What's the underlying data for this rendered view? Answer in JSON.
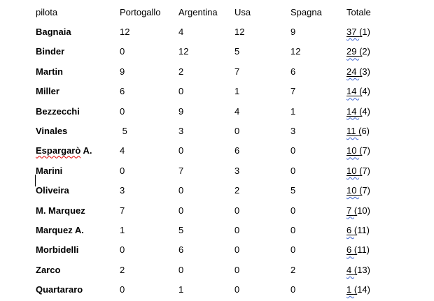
{
  "page": {
    "background": "#ffffff"
  },
  "colors": {
    "text": "#000000",
    "grammar_underline_blue": "#3c64d0",
    "spellcheck_red": "#e00000"
  },
  "table": {
    "headers": [
      "pilota",
      "Portogallo",
      "Argentina",
      "Usa",
      "Spagna",
      "Totale"
    ],
    "rows": [
      {
        "name": "Bagnaia",
        "values": [
          "12",
          "4",
          "12",
          "9"
        ],
        "total": {
          "points": "37 ",
          "paren": "(",
          "rest": "1)"
        }
      },
      {
        "name": "Binder",
        "values": [
          "0",
          "12",
          "5",
          "12"
        ],
        "total": {
          "points": "29 ",
          "paren": "(",
          "rest": "2)"
        }
      },
      {
        "name": "Martin",
        "values": [
          "9",
          "2",
          "7",
          "6"
        ],
        "total": {
          "points": "24 ",
          "paren": "(",
          "rest": "3)"
        }
      },
      {
        "name": "Miller",
        "values": [
          "6",
          "0",
          "1",
          "7"
        ],
        "total": {
          "points": "14 ",
          "paren": "(",
          "rest": "4)"
        }
      },
      {
        "name": "Bezzecchi",
        "values": [
          "0",
          "9",
          "4",
          "1"
        ],
        "total": {
          "points": "14 ",
          "paren": "(",
          "rest": "4)"
        }
      },
      {
        "name": "Vinales",
        "values": [
          " 5",
          "3",
          "0",
          "3"
        ],
        "total": {
          "points": "11 ",
          "paren": "(",
          "rest": "6)"
        }
      },
      {
        "name": "Espargarò A.",
        "name_parts": {
          "wavy": "Espargarò",
          "rest": " A."
        },
        "values": [
          "4",
          "0",
          "6",
          "0"
        ],
        "total": {
          "points": "10 ",
          "paren": "(",
          "rest": "7)"
        }
      },
      {
        "name": "Marini",
        "values": [
          "0",
          "7",
          "3",
          "0"
        ],
        "total": {
          "points": "10 ",
          "paren": "(",
          "rest": "7)"
        }
      },
      {
        "name": "Oliveira",
        "values": [
          "3",
          "0",
          "2",
          "5"
        ],
        "total": {
          "points": "10 ",
          "paren": "(",
          "rest": "7)"
        }
      },
      {
        "name": "M. Marquez",
        "values": [
          "7",
          "0",
          "0",
          "0"
        ],
        "total": {
          "points": "7 ",
          "paren": "(",
          "rest": "10)"
        }
      },
      {
        "name": "Marquez A.",
        "values": [
          "1",
          "5",
          "0",
          "0"
        ],
        "total": {
          "points": "6 ",
          "paren": "(",
          "rest": "11)"
        }
      },
      {
        "name": "Morbidelli",
        "values": [
          "0",
          "6",
          "0",
          "0"
        ],
        "total": {
          "points": "6 ",
          "paren": "(",
          "rest": "11)"
        }
      },
      {
        "name": "Zarco",
        "values": [
          "2",
          "0",
          "0",
          "2"
        ],
        "total": {
          "points": "4 ",
          "paren": "(",
          "rest": "13)"
        }
      },
      {
        "name": "Quartararo",
        "values": [
          "0",
          "1",
          "0",
          "0"
        ],
        "total": {
          "points": "1 ",
          "paren": "(",
          "rest": "14)"
        }
      }
    ]
  },
  "cursor": {
    "visible": true
  }
}
